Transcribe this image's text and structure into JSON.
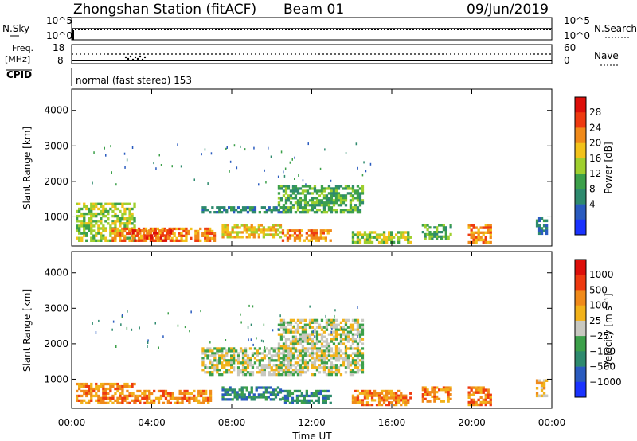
{
  "header": {
    "station": "Zhongshan Station (fitACF)",
    "beam": "Beam 01",
    "date": "09/Jun/2019"
  },
  "noise_panel": {
    "left_label": "N.Sky",
    "right_label": "N.Search",
    "left_ticks": [
      "10^5",
      "10^0"
    ],
    "right_ticks": [
      "10^5",
      "10^0"
    ]
  },
  "freq_panel": {
    "left_label_top": "Freq.",
    "left_label_bottom": "[MHz]",
    "right_label": "Nave",
    "left_ticks": [
      "18",
      "8"
    ],
    "right_ticks": [
      "60",
      "0"
    ]
  },
  "cpid": {
    "label": "CPID",
    "text": "normal (fast stereo) 153"
  },
  "power_panel": {
    "ylabel": "Slant Range [km]",
    "yticks": [
      "4000",
      "3000",
      "2000",
      "1000"
    ],
    "colorbar_label": "Power [dB]",
    "colorbar_ticks": [
      "28",
      "24",
      "20",
      "16",
      "12",
      "8",
      "4"
    ],
    "colors": [
      "#1a33ff",
      "#2a5bbf",
      "#2e8a6e",
      "#3ca04a",
      "#9fcf2e",
      "#f2c21a",
      "#f08a1a",
      "#ee3a10",
      "#dd0f0a"
    ]
  },
  "velocity_panel": {
    "ylabel": "Slant Range [km]",
    "yticks": [
      "4000",
      "3000",
      "2000",
      "1000"
    ],
    "colorbar_label": "Velocity [m s⁻¹]",
    "colorbar_ticks": [
      "1000",
      "500",
      "100",
      "25",
      "−25",
      "−100",
      "−500",
      "−1000"
    ],
    "colors": [
      "#1a33ff",
      "#2a5bbf",
      "#2e8a6e",
      "#3ca04a",
      "#c8c8c0",
      "#f2b21a",
      "#f08a1a",
      "#ee3a10",
      "#dd0f0a"
    ]
  },
  "xaxis": {
    "ticks": [
      "00:00",
      "04:00",
      "08:00",
      "12:00",
      "16:00",
      "20:00",
      "00:00"
    ],
    "label": "Time UT"
  },
  "chart_data": {
    "type": "heatmap",
    "x_range_hours": [
      0,
      24
    ],
    "y_range_km": [
      180,
      4600
    ],
    "power_regions": [
      {
        "t0": 0.2,
        "t1": 3.2,
        "r0": 300,
        "r1": 1400,
        "level": 4
      },
      {
        "t0": 2.0,
        "t1": 7.2,
        "r0": 300,
        "r1": 700,
        "level": 6
      },
      {
        "t0": 3.0,
        "t1": 5.0,
        "r0": 300,
        "r1": 650,
        "level": 7
      },
      {
        "t0": 6.5,
        "t1": 11.0,
        "r0": 1100,
        "r1": 1300,
        "level": 2
      },
      {
        "t0": 7.5,
        "t1": 10.5,
        "r0": 400,
        "r1": 800,
        "level": 5
      },
      {
        "t0": 10.3,
        "t1": 14.6,
        "r0": 1100,
        "r1": 1900,
        "level": 3
      },
      {
        "t0": 10.5,
        "t1": 13.0,
        "r0": 300,
        "r1": 650,
        "level": 6
      },
      {
        "t0": 14.0,
        "t1": 17.0,
        "r0": 250,
        "r1": 600,
        "level": 4
      },
      {
        "t0": 17.5,
        "t1": 19.0,
        "r0": 350,
        "r1": 800,
        "level": 3
      },
      {
        "t0": 19.8,
        "t1": 21.0,
        "r0": 250,
        "r1": 800,
        "level": 6
      },
      {
        "t0": 23.2,
        "t1": 23.8,
        "r0": 500,
        "r1": 1000,
        "level": 2
      }
    ],
    "velocity_regions": [
      {
        "t0": 0.2,
        "t1": 3.2,
        "r0": 300,
        "r1": 900,
        "level": 6
      },
      {
        "t0": 3.0,
        "t1": 7.0,
        "r0": 300,
        "r1": 700,
        "level": 6
      },
      {
        "t0": 6.5,
        "t1": 11.0,
        "r0": 1100,
        "r1": 1900,
        "level": 4
      },
      {
        "t0": 7.5,
        "t1": 10.5,
        "r0": 400,
        "r1": 800,
        "level": 2
      },
      {
        "t0": 10.3,
        "t1": 14.6,
        "r0": 1100,
        "r1": 2700,
        "level": 4
      },
      {
        "t0": 10.5,
        "t1": 13.0,
        "r0": 300,
        "r1": 700,
        "level": 2
      },
      {
        "t0": 14.0,
        "t1": 17.0,
        "r0": 250,
        "r1": 700,
        "level": 6
      },
      {
        "t0": 17.5,
        "t1": 19.0,
        "r0": 350,
        "r1": 800,
        "level": 6
      },
      {
        "t0": 19.8,
        "t1": 21.0,
        "r0": 250,
        "r1": 800,
        "level": 6
      },
      {
        "t0": 23.2,
        "t1": 23.8,
        "r0": 500,
        "r1": 1000,
        "level": 5
      }
    ]
  }
}
